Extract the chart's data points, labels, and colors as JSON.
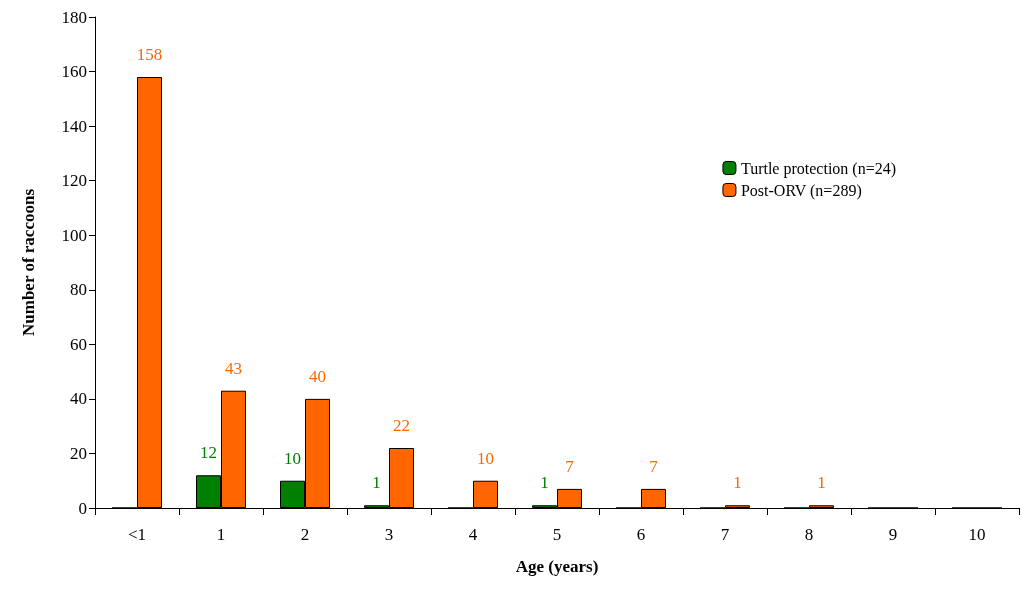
{
  "chart_data": {
    "type": "bar",
    "xlabel": "Age (years)",
    "ylabel": "Number of raccoons",
    "categories": [
      "<1",
      "1",
      "2",
      "3",
      "4",
      "5",
      "6",
      "7",
      "8",
      "9",
      "10"
    ],
    "series": [
      {
        "name": "Turtle protection (n=24)",
        "color": "#008000",
        "values": [
          0,
          12,
          10,
          1,
          0,
          1,
          0,
          0,
          0,
          0,
          0
        ],
        "value_labels": [
          null,
          "12",
          "10",
          "1",
          null,
          "1",
          null,
          null,
          null,
          null,
          null
        ]
      },
      {
        "name": "Post-ORV (n=289)",
        "color": "#ff6600",
        "values": [
          158,
          43,
          40,
          22,
          10,
          7,
          7,
          1,
          1,
          0,
          0
        ],
        "value_labels": [
          "158",
          "43",
          "40",
          "22",
          "10",
          "7",
          "7",
          "1",
          "1",
          null,
          null
        ]
      }
    ],
    "ylim": [
      0,
      180
    ],
    "yticks": [
      0,
      20,
      40,
      60,
      80,
      100,
      120,
      140,
      160,
      180
    ],
    "grid": false,
    "legend": "right"
  }
}
